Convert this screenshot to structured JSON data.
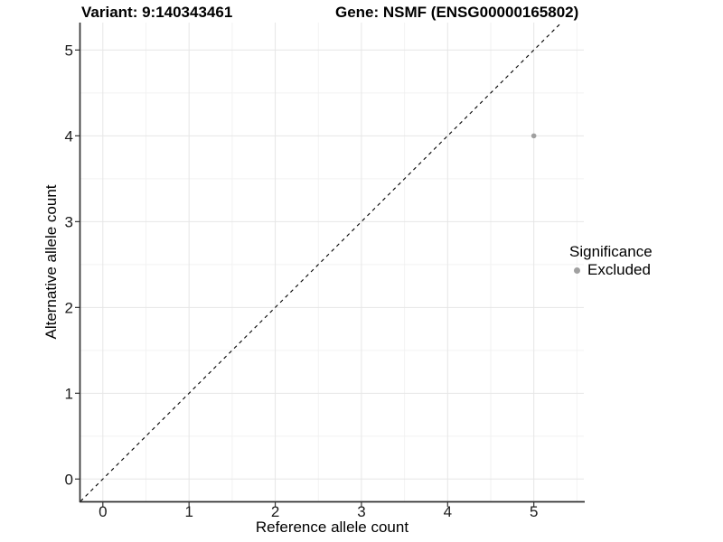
{
  "chart_data": {
    "type": "scatter",
    "title_left": "Variant: 9:140343461",
    "title_right": "Gene: NSMF (ENSG00000165802)",
    "xlabel": "Reference allele count",
    "ylabel": "Alternative allele count",
    "x_ticks": [
      0,
      1,
      2,
      3,
      4,
      5
    ],
    "y_ticks": [
      0,
      1,
      2,
      3,
      4,
      5
    ],
    "xlim": [
      -0.26,
      5.58
    ],
    "ylim": [
      -0.26,
      5.32
    ],
    "grid": {
      "major": true,
      "minor": true,
      "major_color": "#e6e6e6",
      "minor_color": "#f2f2f2"
    },
    "axis_color": "#333333",
    "tick_label_color": "#1a1a1a",
    "reference_line": {
      "type": "identity",
      "style": "dashed",
      "color": "#000000"
    },
    "series": [
      {
        "name": "Excluded",
        "color": "#a0a0a0",
        "points": [
          [
            5,
            4
          ]
        ]
      }
    ],
    "legend": {
      "title": "Significance",
      "position": "right",
      "entries": [
        {
          "label": "Excluded",
          "color": "#a0a0a0"
        }
      ]
    }
  }
}
